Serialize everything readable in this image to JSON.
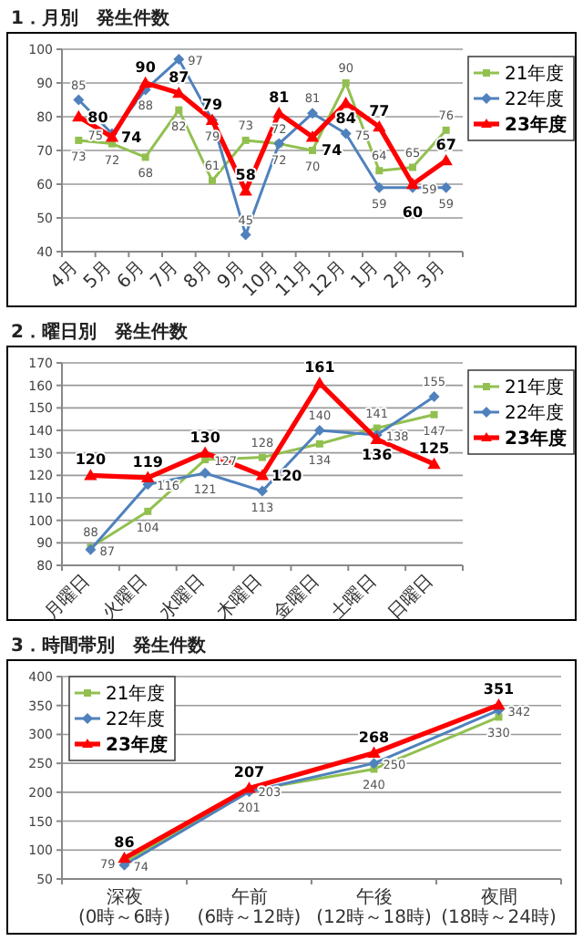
{
  "chart_data": [
    {
      "type": "line",
      "title": "1．月別　発生件数",
      "categories": [
        "4月",
        "5月",
        "6月",
        "7月",
        "8月",
        "9月",
        "10月",
        "11月",
        "12月",
        "1月",
        "2月",
        "3月"
      ],
      "ylim": [
        40,
        100
      ],
      "yticks": [
        40,
        50,
        60,
        70,
        80,
        90,
        100
      ],
      "grid": true,
      "legend": "right",
      "data_labels": true,
      "series": [
        {
          "name": "21年度",
          "color": "#92c050",
          "marker": "square",
          "values": [
            73,
            72,
            68,
            82,
            61,
            73,
            72,
            70,
            90,
            64,
            65,
            76
          ]
        },
        {
          "name": "22年度",
          "color": "#4f81bd",
          "marker": "diamond",
          "values": [
            85,
            75,
            88,
            97,
            79,
            45,
            72,
            81,
            75,
            59,
            59,
            59
          ]
        },
        {
          "name": "23年度",
          "color": "#ff0000",
          "marker": "triangle",
          "values": [
            80,
            74,
            90,
            87,
            79,
            58,
            81,
            74,
            84,
            77,
            60,
            67
          ]
        }
      ]
    },
    {
      "type": "line",
      "title": "2．曜日別　発生件数",
      "categories": [
        "月曜日",
        "火曜日",
        "水曜日",
        "木曜日",
        "金曜日",
        "土曜日",
        "日曜日"
      ],
      "ylim": [
        80,
        170
      ],
      "yticks": [
        80,
        90,
        100,
        110,
        120,
        130,
        140,
        150,
        160,
        170
      ],
      "grid": true,
      "legend": "right",
      "data_labels": true,
      "series": [
        {
          "name": "21年度",
          "color": "#92c050",
          "marker": "square",
          "values": [
            88,
            104,
            127,
            128,
            134,
            141,
            147
          ]
        },
        {
          "name": "22年度",
          "color": "#4f81bd",
          "marker": "diamond",
          "values": [
            87,
            116,
            121,
            113,
            140,
            138,
            155
          ]
        },
        {
          "name": "23年度",
          "color": "#ff0000",
          "marker": "triangle",
          "values": [
            120,
            119,
            130,
            120,
            161,
            136,
            125
          ]
        }
      ]
    },
    {
      "type": "line",
      "title": "3．時間帯別　発生件数",
      "categories": [
        "深夜(0時～6時)",
        "午前(6時～12時)",
        "午後(12時～18時)",
        "夜間(18時～24時)"
      ],
      "ylim": [
        50,
        400
      ],
      "yticks": [
        50,
        100,
        150,
        200,
        250,
        300,
        350,
        400
      ],
      "grid": true,
      "legend": "top left",
      "data_labels": true,
      "series": [
        {
          "name": "21年度",
          "color": "#92c050",
          "marker": "square",
          "values": [
            79,
            203,
            240,
            330
          ]
        },
        {
          "name": "22年度",
          "color": "#4f81bd",
          "marker": "diamond",
          "values": [
            74,
            201,
            250,
            342
          ]
        },
        {
          "name": "23年度",
          "color": "#ff0000",
          "marker": "triangle",
          "values": [
            86,
            207,
            268,
            351
          ]
        }
      ]
    }
  ]
}
